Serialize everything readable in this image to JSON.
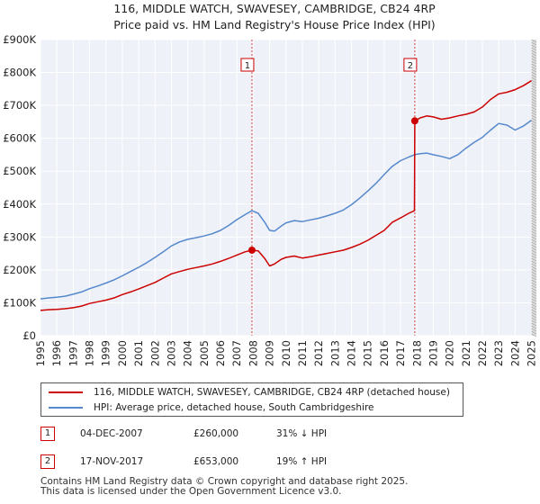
{
  "chart_data": {
    "type": "line",
    "title": "116, MIDDLE WATCH, SWAVESEY, CAMBRIDGE, CB24 4RP",
    "subtitle": "Price paid vs. HM Land Registry's House Price Index (HPI)",
    "xlim": [
      1995,
      2025.3
    ],
    "ylim": [
      0,
      900000
    ],
    "x_tick_labels": [
      "1995",
      "1996",
      "1997",
      "1998",
      "1999",
      "2000",
      "2001",
      "2002",
      "2003",
      "2004",
      "2005",
      "2006",
      "2007",
      "2008",
      "2009",
      "2010",
      "2011",
      "2012",
      "2013",
      "2014",
      "2015",
      "2016",
      "2017",
      "2018",
      "2019",
      "2020",
      "2021",
      "2022",
      "2023",
      "2024",
      "2025"
    ],
    "y_ticks": [
      {
        "value": 0,
        "label": "£0"
      },
      {
        "value": 100000,
        "label": "£100K"
      },
      {
        "value": 200000,
        "label": "£200K"
      },
      {
        "value": 300000,
        "label": "£300K"
      },
      {
        "value": 400000,
        "label": "£400K"
      },
      {
        "value": 500000,
        "label": "£500K"
      },
      {
        "value": 600000,
        "label": "£600K"
      },
      {
        "value": 700000,
        "label": "£700K"
      },
      {
        "value": 800000,
        "label": "£800K"
      },
      {
        "value": 900000,
        "label": "£900K"
      }
    ],
    "series": [
      {
        "name": "116, MIDDLE WATCH, SWAVESEY, CAMBRIDGE, CB24 4RP (detached house)",
        "color": "#cc0000",
        "x": [
          1995.0,
          1995.5,
          1996.0,
          1996.5,
          1997.0,
          1997.5,
          1998.0,
          1998.5,
          1999.0,
          1999.5,
          2000.0,
          2000.5,
          2001.0,
          2001.5,
          2002.0,
          2002.5,
          2003.0,
          2003.5,
          2004.0,
          2004.5,
          2005.0,
          2005.5,
          2006.0,
          2006.5,
          2007.0,
          2007.5,
          2007.92,
          2008.3,
          2008.7,
          2009.0,
          2009.3,
          2009.7,
          2010.0,
          2010.5,
          2011.0,
          2011.5,
          2012.0,
          2012.5,
          2013.0,
          2013.5,
          2014.0,
          2014.5,
          2015.0,
          2015.5,
          2016.0,
          2016.5,
          2017.0,
          2017.5,
          2017.85,
          2017.87,
          2018.2,
          2018.6,
          2019.0,
          2019.5,
          2020.0,
          2020.5,
          2021.0,
          2021.5,
          2022.0,
          2022.5,
          2023.0,
          2023.5,
          2024.0,
          2024.5,
          2025.0
        ],
        "values": [
          77000,
          79000,
          80000,
          82000,
          85000,
          90000,
          98000,
          103000,
          108000,
          115000,
          125000,
          133000,
          142000,
          152000,
          162000,
          175000,
          188000,
          195000,
          202000,
          207000,
          212000,
          218000,
          226000,
          235000,
          245000,
          255000,
          260000,
          258000,
          235000,
          212000,
          218000,
          232000,
          238000,
          242000,
          236000,
          240000,
          245000,
          250000,
          255000,
          260000,
          268000,
          278000,
          290000,
          305000,
          320000,
          345000,
          358000,
          372000,
          380000,
          653000,
          662000,
          668000,
          665000,
          658000,
          662000,
          668000,
          673000,
          680000,
          695000,
          718000,
          735000,
          740000,
          748000,
          760000,
          775000
        ]
      },
      {
        "name": "HPI: Average price, detached house, South Cambridgeshire",
        "color": "#5588cc",
        "x": [
          1995.0,
          1995.5,
          1996.0,
          1996.5,
          1997.0,
          1997.5,
          1998.0,
          1998.5,
          1999.0,
          1999.5,
          2000.0,
          2000.5,
          2001.0,
          2001.5,
          2002.0,
          2002.5,
          2003.0,
          2003.5,
          2004.0,
          2004.5,
          2005.0,
          2005.5,
          2006.0,
          2006.5,
          2007.0,
          2007.5,
          2007.92,
          2008.3,
          2008.7,
          2009.0,
          2009.3,
          2009.7,
          2010.0,
          2010.5,
          2011.0,
          2011.5,
          2012.0,
          2012.5,
          2013.0,
          2013.5,
          2014.0,
          2014.5,
          2015.0,
          2015.5,
          2016.0,
          2016.5,
          2017.0,
          2017.5,
          2017.85,
          2018.2,
          2018.6,
          2019.0,
          2019.5,
          2020.0,
          2020.5,
          2021.0,
          2021.5,
          2022.0,
          2022.5,
          2023.0,
          2023.5,
          2024.0,
          2024.5,
          2025.0
        ],
        "values": [
          112000,
          115000,
          117000,
          120000,
          126000,
          133000,
          143000,
          151000,
          160000,
          170000,
          182000,
          195000,
          208000,
          222000,
          238000,
          255000,
          273000,
          285000,
          293000,
          298000,
          303000,
          310000,
          320000,
          335000,
          353000,
          368000,
          380000,
          372000,
          345000,
          320000,
          318000,
          333000,
          343000,
          350000,
          347000,
          352000,
          357000,
          364000,
          372000,
          382000,
          398000,
          418000,
          440000,
          463000,
          490000,
          515000,
          532000,
          543000,
          550000,
          553000,
          555000,
          550000,
          545000,
          538000,
          550000,
          570000,
          588000,
          603000,
          625000,
          645000,
          640000,
          625000,
          637000,
          655000
        ]
      }
    ],
    "markers": [
      {
        "label": "1",
        "x": 2007.92,
        "value": 260000
      },
      {
        "label": "2",
        "x": 2017.87,
        "value": 653000
      }
    ]
  },
  "legend": {
    "series1_label": "116, MIDDLE WATCH, SWAVESEY, CAMBRIDGE, CB24 4RP (detached house)",
    "series2_label": "HPI: Average price, detached house, South Cambridgeshire",
    "series1_color": "#cc0000",
    "series2_color": "#5588cc"
  },
  "transactions": [
    {
      "num": "1",
      "date": "04-DEC-2007",
      "price": "£260,000",
      "hpi": "31% ↓ HPI"
    },
    {
      "num": "2",
      "date": "17-NOV-2017",
      "price": "£653,000",
      "hpi": "19% ↑ HPI"
    }
  ],
  "footer": {
    "line1": "Contains HM Land Registry data © Crown copyright and database right 2025.",
    "line2": "This data is licensed under the Open Government Licence v3.0."
  }
}
